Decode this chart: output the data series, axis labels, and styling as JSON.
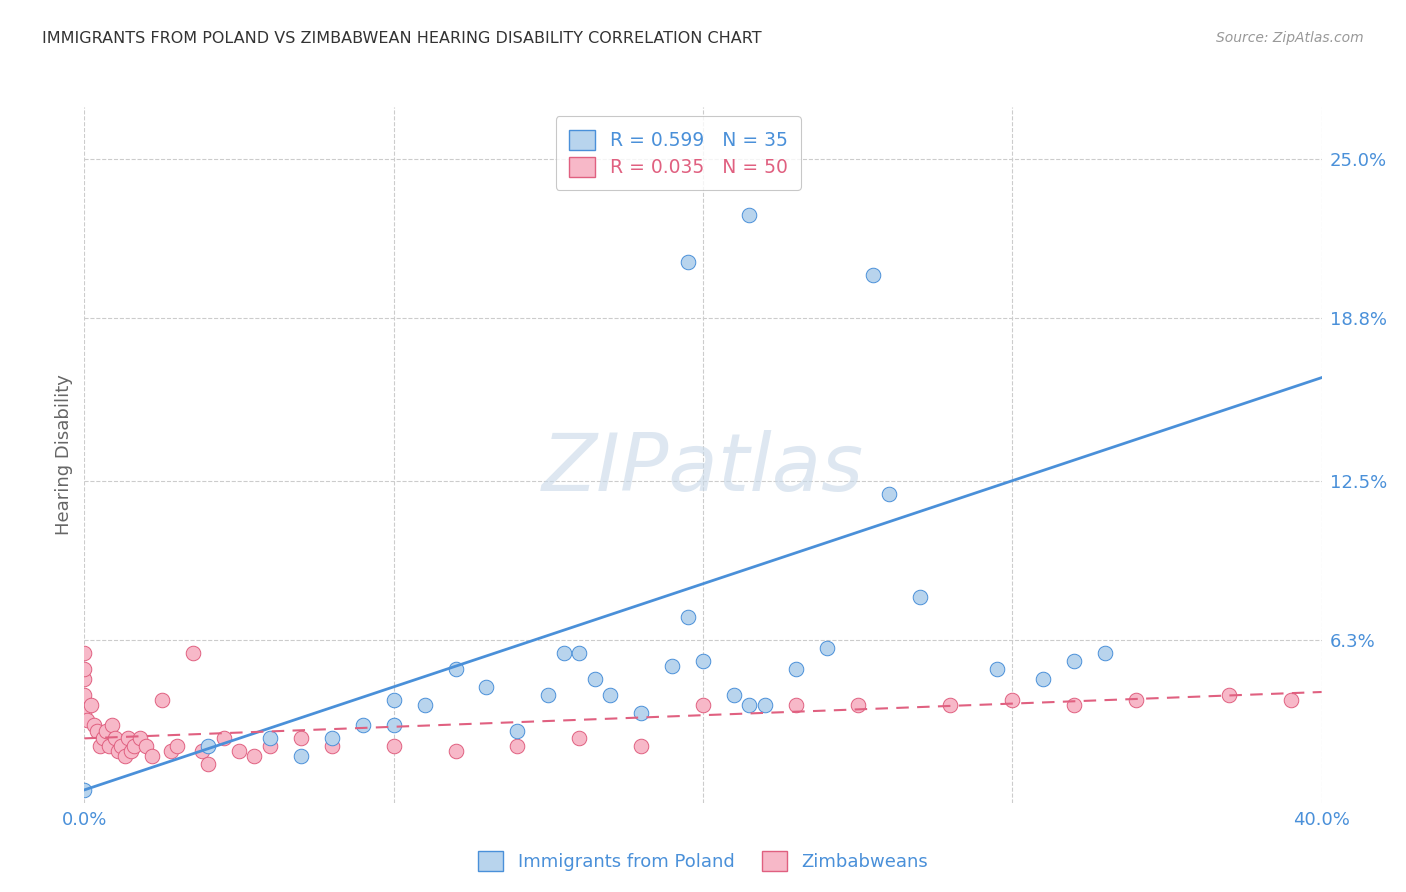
{
  "title": "IMMIGRANTS FROM POLAND VS ZIMBABWEAN HEARING DISABILITY CORRELATION CHART",
  "source": "Source: ZipAtlas.com",
  "ylabel": "Hearing Disability",
  "ytick_labels": [
    "25.0%",
    "18.8%",
    "12.5%",
    "6.3%"
  ],
  "ytick_values": [
    0.25,
    0.188,
    0.125,
    0.063
  ],
  "xlim": [
    0.0,
    0.4
  ],
  "ylim": [
    0.0,
    0.27
  ],
  "legend_blue_R": "R = 0.599",
  "legend_blue_N": "N = 35",
  "legend_pink_R": "R = 0.035",
  "legend_pink_N": "N = 50",
  "legend_label_blue": "Immigrants from Poland",
  "legend_label_pink": "Zimbabweans",
  "blue_color": "#b8d4ed",
  "pink_color": "#f7b8c8",
  "line_blue_color": "#4a90d9",
  "line_pink_color": "#e06080",
  "text_color": "#4a90d9",
  "watermark_color": "#c8d8e8",
  "blue_scatter_x": [
    0.0,
    0.04,
    0.06,
    0.07,
    0.08,
    0.09,
    0.1,
    0.1,
    0.11,
    0.12,
    0.13,
    0.14,
    0.15,
    0.155,
    0.16,
    0.165,
    0.17,
    0.18,
    0.19,
    0.195,
    0.2,
    0.21,
    0.215,
    0.22,
    0.23,
    0.24,
    0.26,
    0.27,
    0.295,
    0.31,
    0.32,
    0.33,
    0.195,
    0.215,
    0.255
  ],
  "blue_scatter_y": [
    0.005,
    0.022,
    0.025,
    0.018,
    0.025,
    0.03,
    0.04,
    0.03,
    0.038,
    0.052,
    0.045,
    0.028,
    0.042,
    0.058,
    0.058,
    0.048,
    0.042,
    0.035,
    0.053,
    0.072,
    0.055,
    0.042,
    0.038,
    0.038,
    0.052,
    0.06,
    0.12,
    0.08,
    0.052,
    0.048,
    0.055,
    0.058,
    0.21,
    0.228,
    0.205
  ],
  "pink_scatter_x": [
    0.0,
    0.0,
    0.0,
    0.0,
    0.0,
    0.001,
    0.002,
    0.003,
    0.004,
    0.005,
    0.006,
    0.007,
    0.008,
    0.009,
    0.01,
    0.011,
    0.012,
    0.013,
    0.014,
    0.015,
    0.016,
    0.018,
    0.02,
    0.022,
    0.025,
    0.028,
    0.03,
    0.035,
    0.038,
    0.04,
    0.045,
    0.05,
    0.055,
    0.06,
    0.07,
    0.08,
    0.1,
    0.12,
    0.14,
    0.16,
    0.18,
    0.2,
    0.23,
    0.25,
    0.28,
    0.3,
    0.32,
    0.34,
    0.37,
    0.39
  ],
  "pink_scatter_y": [
    0.035,
    0.042,
    0.048,
    0.052,
    0.058,
    0.032,
    0.038,
    0.03,
    0.028,
    0.022,
    0.025,
    0.028,
    0.022,
    0.03,
    0.025,
    0.02,
    0.022,
    0.018,
    0.025,
    0.02,
    0.022,
    0.025,
    0.022,
    0.018,
    0.04,
    0.02,
    0.022,
    0.058,
    0.02,
    0.015,
    0.025,
    0.02,
    0.018,
    0.022,
    0.025,
    0.022,
    0.022,
    0.02,
    0.022,
    0.025,
    0.022,
    0.038,
    0.038,
    0.038,
    0.038,
    0.04,
    0.038,
    0.04,
    0.042,
    0.04
  ],
  "blue_line_x": [
    0.0,
    0.4
  ],
  "blue_line_y": [
    0.005,
    0.165
  ],
  "pink_line_x": [
    0.0,
    0.4
  ],
  "pink_line_y": [
    0.025,
    0.043
  ],
  "xtick_positions": [
    0.0,
    0.1,
    0.2,
    0.3,
    0.4
  ],
  "xtick_labels": [
    "0.0%",
    "",
    "",
    "",
    "40.0%"
  ]
}
